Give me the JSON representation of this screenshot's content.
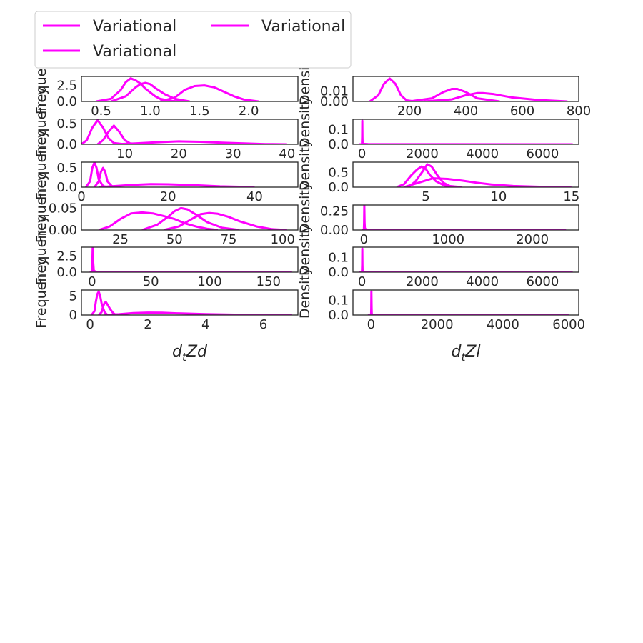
{
  "colors": {
    "curve": "#ff00ff",
    "frame": "#262626",
    "text": "#262626"
  },
  "legend": {
    "placement": "top-left",
    "entries": [
      "Variational",
      "Variational",
      "Variational"
    ]
  },
  "chart_data": [
    {
      "type": "line",
      "ylabel": "Frequency",
      "xlim": [
        0.3,
        2.5
      ],
      "ylim": [
        0,
        3.9
      ],
      "xticks": [
        0.5,
        1.0,
        1.5,
        2.0
      ],
      "xtick_labels": [
        "0.5",
        "1.0",
        "1.5",
        "2.0"
      ],
      "yticks": [
        0.0,
        2.5
      ],
      "ytick_labels": [
        "0.0",
        "2.5"
      ],
      "series": [
        {
          "x": [
            0.45,
            0.6,
            0.7,
            0.75,
            0.8,
            0.85,
            0.9,
            0.95,
            1.0,
            1.05,
            1.1,
            1.2,
            1.3
          ],
          "y": [
            0,
            0.4,
            1.8,
            3.0,
            3.6,
            3.3,
            2.8,
            2.0,
            1.4,
            0.8,
            0.4,
            0.1,
            0
          ]
        },
        {
          "x": [
            0.6,
            0.75,
            0.85,
            0.9,
            0.95,
            1.0,
            1.05,
            1.15,
            1.25,
            1.4
          ],
          "y": [
            0,
            0.8,
            2.2,
            2.7,
            2.9,
            2.7,
            2.1,
            1.1,
            0.4,
            0
          ]
        },
        {
          "x": [
            1.1,
            1.25,
            1.35,
            1.45,
            1.55,
            1.65,
            1.75,
            1.85,
            1.95,
            2.1
          ],
          "y": [
            0,
            0.6,
            1.8,
            2.4,
            2.5,
            2.2,
            1.5,
            0.8,
            0.3,
            0
          ]
        }
      ]
    },
    {
      "type": "line",
      "ylabel": "Density",
      "xlim": [
        0,
        800
      ],
      "ylim": [
        0,
        0.024
      ],
      "xticks": [
        200,
        400,
        600,
        800
      ],
      "xtick_labels": [
        "200",
        "400",
        "600",
        "800"
      ],
      "yticks": [
        0.0,
        0.01
      ],
      "ytick_labels": [
        "0.00",
        "0.01"
      ],
      "series": [
        {
          "x": [
            60,
            90,
            110,
            130,
            150,
            170,
            190,
            220
          ],
          "y": [
            0,
            0.006,
            0.017,
            0.022,
            0.017,
            0.006,
            0.001,
            0
          ]
        },
        {
          "x": [
            200,
            280,
            320,
            350,
            370,
            400,
            440,
            520
          ],
          "y": [
            0,
            0.003,
            0.009,
            0.012,
            0.012,
            0.009,
            0.003,
            0
          ]
        },
        {
          "x": [
            250,
            350,
            400,
            440,
            460,
            500,
            560,
            650,
            760
          ],
          "y": [
            0,
            0.002,
            0.006,
            0.008,
            0.008,
            0.007,
            0.004,
            0.0015,
            0
          ]
        }
      ]
    },
    {
      "type": "line",
      "ylabel": "Frequency",
      "xlim": [
        2,
        42
      ],
      "ylim": [
        0,
        0.6
      ],
      "xticks": [
        10,
        20,
        30,
        40
      ],
      "xtick_labels": [
        "10",
        "20",
        "30",
        "40"
      ],
      "yticks": [
        0.0,
        0.5
      ],
      "ytick_labels": [
        "0.0",
        "0.5"
      ],
      "series": [
        {
          "x": [
            2,
            3,
            4,
            5,
            6,
            7,
            8,
            10
          ],
          "y": [
            0,
            0.1,
            0.4,
            0.58,
            0.4,
            0.15,
            0.03,
            0
          ]
        },
        {
          "x": [
            5,
            6,
            7,
            8,
            9,
            10,
            11,
            13
          ],
          "y": [
            0,
            0.1,
            0.3,
            0.45,
            0.3,
            0.1,
            0.02,
            0
          ]
        },
        {
          "x": [
            8,
            12,
            16,
            20,
            24,
            28,
            32,
            36,
            40
          ],
          "y": [
            0,
            0.02,
            0.05,
            0.07,
            0.06,
            0.04,
            0.02,
            0.005,
            0
          ]
        }
      ]
    },
    {
      "type": "line",
      "ylabel": "Density",
      "xlim": [
        -300,
        7200
      ],
      "ylim": [
        0,
        0.17
      ],
      "xticks": [
        0,
        2000,
        4000,
        6000
      ],
      "xtick_labels": [
        "0",
        "2000",
        "4000",
        "6000"
      ],
      "yticks": [
        0.0,
        0.1
      ],
      "ytick_labels": [
        "0.0",
        "0.1"
      ],
      "series": [
        {
          "x": [
            -100,
            0,
            5,
            10,
            15,
            20,
            40,
            200,
            1000,
            7000
          ],
          "y": [
            0,
            0,
            0.05,
            0.16,
            0.05,
            0.01,
            0.003,
            0.001,
            0.0003,
            0
          ]
        }
      ]
    },
    {
      "type": "line",
      "ylabel": "Frequency",
      "xlim": [
        0,
        50
      ],
      "ylim": [
        0,
        0.65
      ],
      "xticks": [
        0,
        20,
        40
      ],
      "xtick_labels": [
        "0",
        "20",
        "40"
      ],
      "yticks": [
        0.0,
        0.5
      ],
      "ytick_labels": [
        "0.0",
        "0.5"
      ],
      "series": [
        {
          "x": [
            1,
            2,
            2.5,
            3,
            3.5,
            4,
            5,
            6
          ],
          "y": [
            0,
            0.15,
            0.5,
            0.64,
            0.5,
            0.2,
            0.03,
            0
          ]
        },
        {
          "x": [
            3,
            4,
            4.5,
            5,
            5.5,
            6,
            7,
            8
          ],
          "y": [
            0,
            0.15,
            0.4,
            0.5,
            0.4,
            0.15,
            0.03,
            0
          ]
        },
        {
          "x": [
            4,
            8,
            12,
            16,
            20,
            24,
            28,
            32,
            40
          ],
          "y": [
            0,
            0.03,
            0.06,
            0.08,
            0.075,
            0.06,
            0.04,
            0.02,
            0
          ]
        }
      ]
    },
    {
      "type": "line",
      "ylabel": "Density",
      "xlim": [
        0,
        15.5
      ],
      "ylim": [
        0,
        0.85
      ],
      "xticks": [
        5,
        10,
        15
      ],
      "xtick_labels": [
        "5",
        "10",
        "15"
      ],
      "yticks": [
        0.0,
        0.5
      ],
      "ytick_labels": [
        "0.0",
        "0.5"
      ],
      "series": [
        {
          "x": [
            3,
            3.5,
            4,
            4.4,
            4.7,
            5,
            5.3,
            5.7,
            6.3,
            7.5
          ],
          "y": [
            0,
            0.1,
            0.4,
            0.6,
            0.7,
            0.62,
            0.4,
            0.2,
            0.05,
            0
          ]
        },
        {
          "x": [
            3.8,
            4.3,
            4.8,
            5.1,
            5.4,
            5.8,
            6.2,
            6.8
          ],
          "y": [
            0,
            0.2,
            0.55,
            0.78,
            0.7,
            0.4,
            0.15,
            0
          ]
        },
        {
          "x": [
            3.5,
            4.5,
            5.5,
            6.5,
            7.5,
            8.5,
            9.5,
            11,
            13,
            15
          ],
          "y": [
            0,
            0.15,
            0.3,
            0.28,
            0.22,
            0.15,
            0.09,
            0.04,
            0.01,
            0
          ]
        }
      ]
    },
    {
      "type": "line",
      "ylabel": "Frequency",
      "xlim": [
        7,
        107
      ],
      "ylim": [
        0,
        0.057
      ],
      "xticks": [
        25,
        50,
        75,
        100
      ],
      "xtick_labels": [
        "25",
        "50",
        "75",
        "100"
      ],
      "yticks": [
        0.0,
        0.05
      ],
      "ytick_labels": [
        "0.00",
        "0.05"
      ],
      "series": [
        {
          "x": [
            15,
            20,
            25,
            30,
            35,
            40,
            45,
            50,
            55,
            60,
            65,
            70
          ],
          "y": [
            0,
            0.008,
            0.025,
            0.038,
            0.04,
            0.038,
            0.032,
            0.025,
            0.015,
            0.008,
            0.003,
            0
          ]
        },
        {
          "x": [
            35,
            42,
            47,
            50,
            53,
            56,
            60,
            65,
            72,
            80
          ],
          "y": [
            0,
            0.012,
            0.03,
            0.043,
            0.05,
            0.047,
            0.035,
            0.018,
            0.005,
            0
          ]
        },
        {
          "x": [
            45,
            52,
            58,
            62,
            66,
            70,
            75,
            80,
            88,
            95,
            102
          ],
          "y": [
            0,
            0.008,
            0.025,
            0.036,
            0.039,
            0.037,
            0.03,
            0.02,
            0.008,
            0.002,
            0
          ]
        }
      ]
    },
    {
      "type": "line",
      "ylabel": "Density",
      "xlim": [
        -130,
        2550
      ],
      "ylim": [
        0,
        0.33
      ],
      "xticks": [
        0,
        1000,
        2000
      ],
      "xtick_labels": [
        "0",
        "1000",
        "2000"
      ],
      "yticks": [
        0.0,
        0.25
      ],
      "ytick_labels": [
        "0.00",
        "0.25"
      ],
      "series": [
        {
          "x": [
            -20,
            0,
            2,
            5,
            8,
            12,
            30,
            200,
            2400
          ],
          "y": [
            0,
            0,
            0.1,
            0.33,
            0.1,
            0.02,
            0.005,
            0.001,
            0
          ]
        }
      ]
    },
    {
      "type": "line",
      "ylabel": "Frequency",
      "xlim": [
        -9,
        175
      ],
      "ylim": [
        0,
        3.9
      ],
      "xticks": [
        0,
        50,
        100,
        150
      ],
      "xtick_labels": [
        "0",
        "50",
        "100",
        "150"
      ],
      "yticks": [
        0.0,
        2.5
      ],
      "ytick_labels": [
        "0.0",
        "2.5"
      ],
      "series": [
        {
          "x": [
            -2,
            0,
            0.3,
            0.6,
            1,
            1.5,
            4,
            30,
            170
          ],
          "y": [
            0,
            0,
            1.5,
            3.9,
            1.5,
            0.2,
            0.03,
            0.005,
            0
          ]
        }
      ]
    },
    {
      "type": "line",
      "ylabel": "Density",
      "xlim": [
        -300,
        7200
      ],
      "ylim": [
        0,
        0.17
      ],
      "xticks": [
        0,
        2000,
        4000,
        6000
      ],
      "xtick_labels": [
        "0",
        "2000",
        "4000",
        "6000"
      ],
      "yticks": [
        0.0,
        0.1
      ],
      "ytick_labels": [
        "0.0",
        "0.1"
      ],
      "series": [
        {
          "x": [
            -100,
            0,
            5,
            10,
            15,
            20,
            40,
            200,
            1000,
            7000
          ],
          "y": [
            0,
            0,
            0.05,
            0.16,
            0.05,
            0.01,
            0.003,
            0.001,
            0.0003,
            0
          ]
        }
      ]
    },
    {
      "type": "line",
      "ylabel": "Frequency",
      "xlabel": "d_t Zd",
      "xlim": [
        -0.3,
        7.2
      ],
      "ylim": [
        0,
        6.6
      ],
      "xticks": [
        0,
        2,
        4,
        6
      ],
      "xtick_labels": [
        "0",
        "2",
        "4",
        "6"
      ],
      "yticks": [
        0,
        5
      ],
      "ytick_labels": [
        "0",
        "5"
      ],
      "series": [
        {
          "x": [
            0.05,
            0.15,
            0.2,
            0.25,
            0.3,
            0.35,
            0.4,
            0.5,
            0.6
          ],
          "y": [
            0,
            1,
            3.5,
            5.5,
            6.2,
            5,
            3,
            0.8,
            0
          ]
        },
        {
          "x": [
            0.3,
            0.4,
            0.45,
            0.5,
            0.55,
            0.6,
            0.7,
            0.8,
            0.9
          ],
          "y": [
            0,
            0.8,
            2.2,
            3.2,
            3.4,
            2.8,
            1.5,
            0.5,
            0
          ]
        },
        {
          "x": [
            0.5,
            1,
            1.5,
            2,
            2.5,
            3,
            4,
            5,
            6,
            7
          ],
          "y": [
            0,
            0.2,
            0.5,
            0.65,
            0.6,
            0.45,
            0.25,
            0.1,
            0.03,
            0
          ]
        }
      ]
    },
    {
      "type": "line",
      "ylabel": "Density",
      "xlabel": "d_t Zl",
      "xlim": [
        -550,
        6300
      ],
      "ylim": [
        0,
        0.17
      ],
      "xticks": [
        0,
        2000,
        4000,
        6000
      ],
      "xtick_labels": [
        "0",
        "2000",
        "4000",
        "6000"
      ],
      "yticks": [
        0.0,
        0.1
      ],
      "ytick_labels": [
        "0.0",
        "0.1"
      ],
      "series": [
        {
          "x": [
            -100,
            0,
            5,
            10,
            15,
            20,
            40,
            200,
            1000,
            6000
          ],
          "y": [
            0,
            0,
            0.05,
            0.16,
            0.05,
            0.01,
            0.003,
            0.001,
            0.0003,
            0
          ]
        }
      ]
    }
  ]
}
